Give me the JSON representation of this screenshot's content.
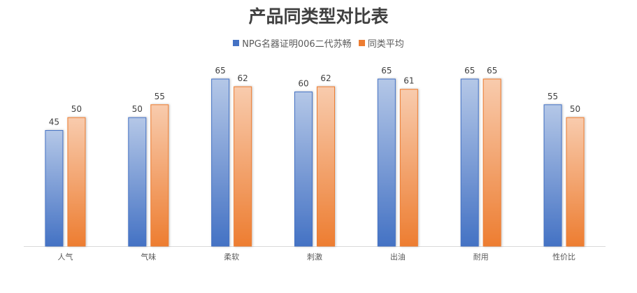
{
  "chart_data": {
    "type": "bar",
    "title": "产品同类型对比表",
    "categories": [
      "人气",
      "气味",
      "柔软",
      "刺激",
      "出油",
      "耐用",
      "性价比"
    ],
    "series": [
      {
        "name": "NPG名器证明006二代苏畅",
        "values": [
          45,
          50,
          65,
          60,
          65,
          65,
          55
        ],
        "color": "#4472C4",
        "color_light": "#B4C7E7"
      },
      {
        "name": "同类平均",
        "values": [
          50,
          55,
          62,
          62,
          61,
          65,
          50
        ],
        "color": "#ED7D31",
        "color_light": "#F8CBAD"
      }
    ],
    "ylim": [
      0,
      65
    ],
    "grid": false,
    "legend": "top",
    "data_labels": true,
    "xlabel": "",
    "ylabel": ""
  }
}
